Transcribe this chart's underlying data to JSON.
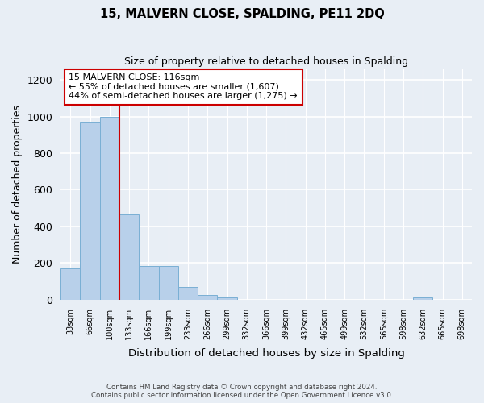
{
  "title": "15, MALVERN CLOSE, SPALDING, PE11 2DQ",
  "subtitle": "Size of property relative to detached houses in Spalding",
  "xlabel": "Distribution of detached houses by size in Spalding",
  "ylabel": "Number of detached properties",
  "bar_labels": [
    "33sqm",
    "66sqm",
    "100sqm",
    "133sqm",
    "166sqm",
    "199sqm",
    "233sqm",
    "266sqm",
    "299sqm",
    "332sqm",
    "366sqm",
    "399sqm",
    "432sqm",
    "465sqm",
    "499sqm",
    "532sqm",
    "565sqm",
    "598sqm",
    "632sqm",
    "665sqm",
    "698sqm"
  ],
  "bar_values": [
    170,
    970,
    1000,
    465,
    185,
    185,
    70,
    25,
    13,
    0,
    0,
    0,
    0,
    0,
    0,
    0,
    0,
    0,
    13,
    0,
    0
  ],
  "bar_color": "#b8d0ea",
  "bar_edge_color": "#7aafd4",
  "vline_x": 2,
  "vline_color": "#cc0000",
  "ylim": [
    0,
    1260
  ],
  "yticks": [
    0,
    200,
    400,
    600,
    800,
    1000,
    1200
  ],
  "annotation_title": "15 MALVERN CLOSE: 116sqm",
  "annotation_line1": "← 55% of detached houses are smaller (1,607)",
  "annotation_line2": "44% of semi-detached houses are larger (1,275) →",
  "annotation_box_color": "#ffffff",
  "annotation_box_edge": "#cc0000",
  "footer_line1": "Contains HM Land Registry data © Crown copyright and database right 2024.",
  "footer_line2": "Contains public sector information licensed under the Open Government Licence v3.0.",
  "bg_color": "#e8eef5",
  "grid_color": "#ffffff"
}
